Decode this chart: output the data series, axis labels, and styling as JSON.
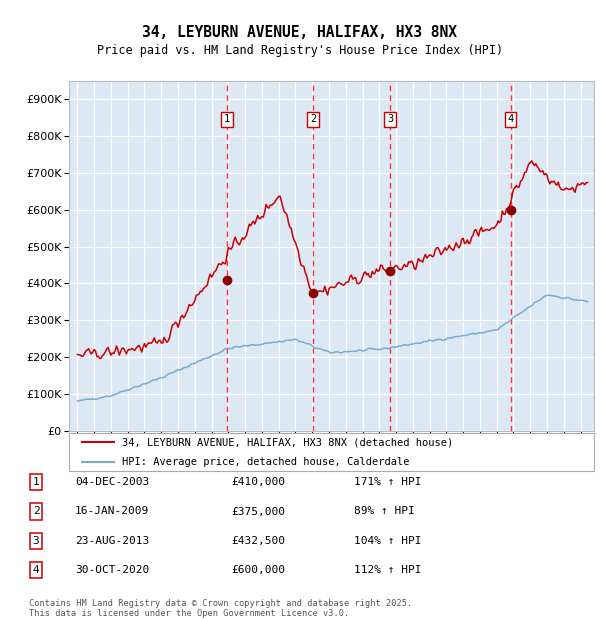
{
  "title": "34, LEYBURN AVENUE, HALIFAX, HX3 8NX",
  "subtitle": "Price paid vs. HM Land Registry's House Price Index (HPI)",
  "legend_line1": "34, LEYBURN AVENUE, HALIFAX, HX3 8NX (detached house)",
  "legend_line2": "HPI: Average price, detached house, Calderdale",
  "footer": "Contains HM Land Registry data © Crown copyright and database right 2025.\nThis data is licensed under the Open Government Licence v3.0.",
  "table": [
    {
      "num": "1",
      "date": "04-DEC-2003",
      "price": "£410,000",
      "pct": "171% ↑ HPI"
    },
    {
      "num": "2",
      "date": "16-JAN-2009",
      "price": "£375,000",
      "pct": "89% ↑ HPI"
    },
    {
      "num": "3",
      "date": "23-AUG-2013",
      "price": "£432,500",
      "pct": "104% ↑ HPI"
    },
    {
      "num": "4",
      "date": "30-OCT-2020",
      "price": "£600,000",
      "pct": "112% ↑ HPI"
    }
  ],
  "sale_dates_num": [
    2003.917,
    2009.042,
    2013.644,
    2020.833
  ],
  "sale_prices": [
    410000,
    375000,
    432500,
    600000
  ],
  "ylim": [
    0,
    950000
  ],
  "yticks": [
    0,
    100000,
    200000,
    300000,
    400000,
    500000,
    600000,
    700000,
    800000,
    900000
  ],
  "xlim_left": 1994.5,
  "xlim_right": 2025.8,
  "plot_bg": "#dce9f5",
  "grid_color": "#ffffff",
  "red_line_color": "#cc0000",
  "blue_line_color": "#7aabcf",
  "marker_color": "#8b0000",
  "vline_color": "#ff3333",
  "box_edge_color": "#cc0000",
  "rand_seed": 42
}
